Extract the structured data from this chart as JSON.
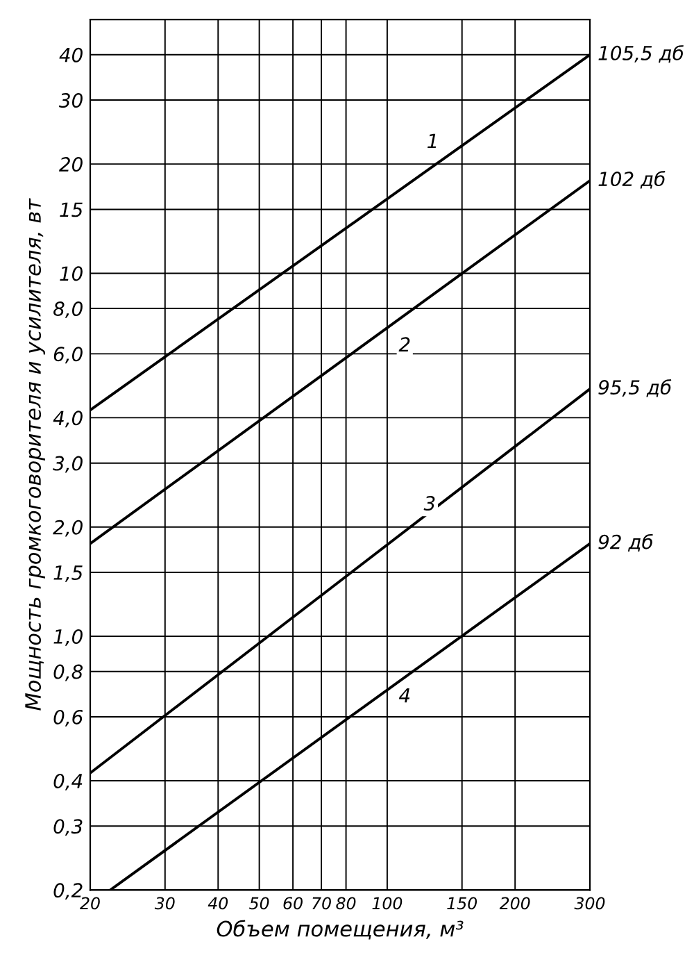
{
  "chart_data": {
    "type": "line",
    "xlabel": "Объем помещения, м³",
    "ylabel": "Мощность громкоговорителя и усилителя, вт",
    "log": "xy",
    "xlim": [
      20,
      300
    ],
    "ylim": [
      0.2,
      50
    ],
    "xticks": [
      20,
      30,
      40,
      50,
      60,
      70,
      80,
      100,
      150,
      200,
      300
    ],
    "yticks": [
      {
        "value": 0.2,
        "label": "0,2"
      },
      {
        "value": 0.3,
        "label": "0,3"
      },
      {
        "value": 0.4,
        "label": "0,4"
      },
      {
        "value": 0.6,
        "label": "0,6"
      },
      {
        "value": 0.8,
        "label": "0,8"
      },
      {
        "value": 1.0,
        "label": "1,0"
      },
      {
        "value": 1.5,
        "label": "1,5"
      },
      {
        "value": 2.0,
        "label": "2,0"
      },
      {
        "value": 3.0,
        "label": "3,0"
      },
      {
        "value": 4.0,
        "label": "4,0"
      },
      {
        "value": 6.0,
        "label": "6,0"
      },
      {
        "value": 8.0,
        "label": "8,0"
      },
      10,
      15,
      20,
      30,
      40
    ],
    "grid": true,
    "marker": "none",
    "line_style": "solid",
    "series": [
      {
        "color": "#000000",
        "x": [
          20,
          300
        ],
        "values": [
          4.2,
          40
        ]
      },
      {
        "color": "#000000",
        "x": [
          20,
          300
        ],
        "values": [
          1.8,
          18
        ]
      },
      {
        "color": "#000000",
        "x": [
          20,
          300
        ],
        "values": [
          0.42,
          4.8
        ]
      },
      {
        "color": "#000000",
        "x": [
          22.3,
          300
        ],
        "values": [
          0.2,
          1.8
        ]
      }
    ],
    "annotations": [
      {
        "text": "105,5 дб",
        "x": 300,
        "y": 40
      },
      {
        "text": "102 дб",
        "x": 300,
        "y": 18
      },
      {
        "text": "95,5 дб",
        "x": 300,
        "y": 4.8
      },
      {
        "text": "92 дб",
        "x": 300,
        "y": 1.8
      },
      {
        "text": "1",
        "x": 128,
        "y": 22.9
      },
      {
        "text": "2",
        "x": 110,
        "y": 6.3
      },
      {
        "text": "3",
        "x": 126,
        "y": 2.3
      },
      {
        "text": "4",
        "x": 110,
        "y": 0.68
      }
    ]
  }
}
